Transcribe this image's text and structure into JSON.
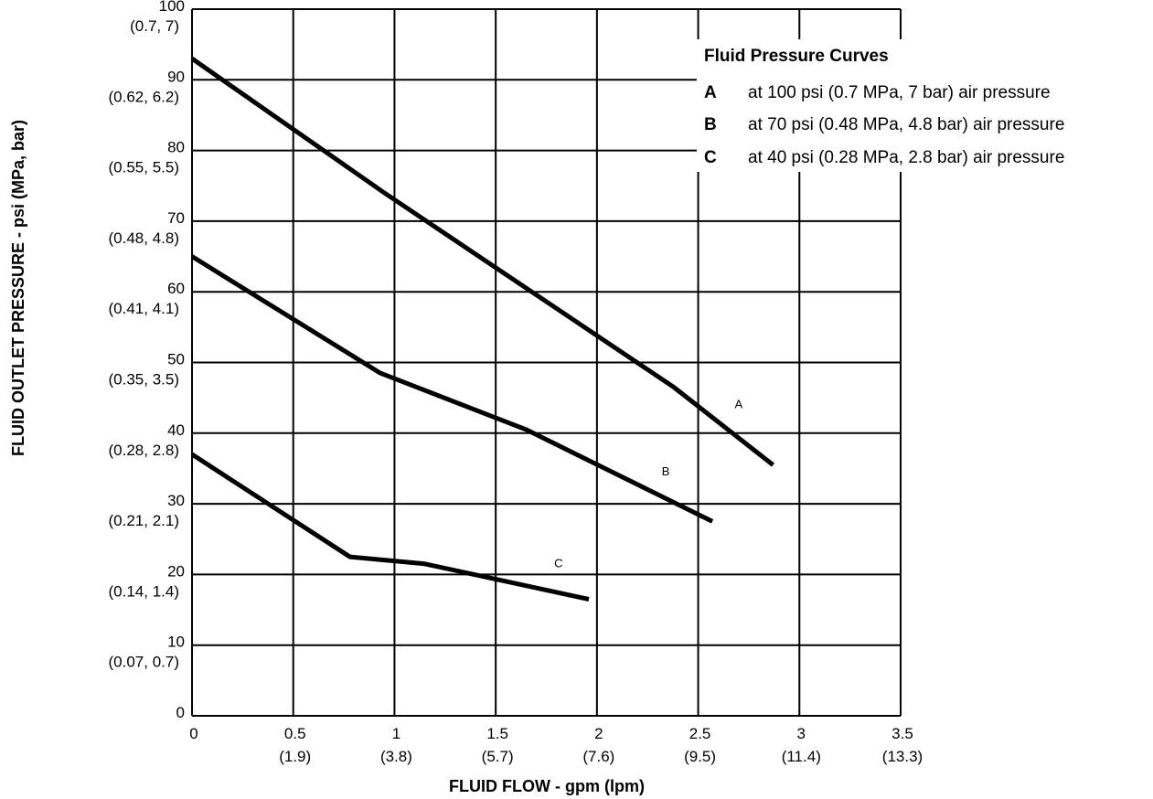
{
  "chart_data": {
    "type": "line",
    "xlabel": "FLUID FLOW - gpm (lpm)",
    "ylabel": "FLUID OUTLET PRESSURE - psi (MPa, bar)",
    "xlim": [
      0,
      3.5
    ],
    "ylim": [
      0,
      100
    ],
    "grid": true,
    "x_ticks": [
      {
        "value": 0,
        "label": "0",
        "sub": ""
      },
      {
        "value": 0.5,
        "label": "0.5",
        "sub": "(1.9)"
      },
      {
        "value": 1,
        "label": "1",
        "sub": "(3.8)"
      },
      {
        "value": 1.5,
        "label": "1.5",
        "sub": "(5.7)"
      },
      {
        "value": 2,
        "label": "2",
        "sub": "(7.6)"
      },
      {
        "value": 2.5,
        "label": "2.5",
        "sub": "(9.5)"
      },
      {
        "value": 3,
        "label": "3",
        "sub": "(11.4)"
      },
      {
        "value": 3.5,
        "label": "3.5",
        "sub": "(13.3)"
      }
    ],
    "y_ticks": [
      {
        "value": 100,
        "label": "100",
        "sub": "(0.7, 7)"
      },
      {
        "value": 90,
        "label": "90",
        "sub": "(0.62, 6.2)"
      },
      {
        "value": 80,
        "label": "80",
        "sub": "(0.55, 5.5)"
      },
      {
        "value": 70,
        "label": "70",
        "sub": "(0.48, 4.8)"
      },
      {
        "value": 60,
        "label": "60",
        "sub": "(0.41, 4.1)"
      },
      {
        "value": 50,
        "label": "50",
        "sub": "(0.35, 3.5)"
      },
      {
        "value": 40,
        "label": "40",
        "sub": "(0.28, 2.8)"
      },
      {
        "value": 30,
        "label": "30",
        "sub": "(0.21, 2.1)"
      },
      {
        "value": 20,
        "label": "20",
        "sub": "(0.14, 1.4)"
      },
      {
        "value": 10,
        "label": "10",
        "sub": "(0.07, 0.7)"
      },
      {
        "value": 0,
        "label": "0",
        "sub": ""
      }
    ],
    "series": [
      {
        "name": "A",
        "x": [
          0,
          0.95,
          2.38,
          2.87
        ],
        "y": [
          93,
          74,
          46.5,
          35.5
        ]
      },
      {
        "name": "B",
        "x": [
          0,
          0.93,
          1.65,
          2.57
        ],
        "y": [
          65,
          48.5,
          40.5,
          27.5
        ]
      },
      {
        "name": "C",
        "x": [
          0,
          0.78,
          1.15,
          1.96
        ],
        "y": [
          37,
          22.5,
          21.5,
          16.5
        ]
      }
    ],
    "curve_labels": [
      {
        "text": "A",
        "x": 2.7,
        "y": 43.5
      },
      {
        "text": "B",
        "x": 2.34,
        "y": 34
      },
      {
        "text": "C",
        "x": 1.81,
        "y": 21
      }
    ],
    "legend": {
      "title": "Fluid Pressure Curves",
      "placement": "top-right",
      "entries": [
        {
          "key": "A",
          "text": "at 100 psi (0.7 MPa, 7 bar) air pressure"
        },
        {
          "key": "B",
          "text": "at 70 psi (0.48 MPa, 4.8 bar) air pressure"
        },
        {
          "key": "C",
          "text": "at 40 psi (0.28 MPa, 2.8 bar) air pressure"
        }
      ]
    },
    "colors": {
      "line": "#000000",
      "grid": "#000000",
      "background": "#ffffff"
    }
  }
}
